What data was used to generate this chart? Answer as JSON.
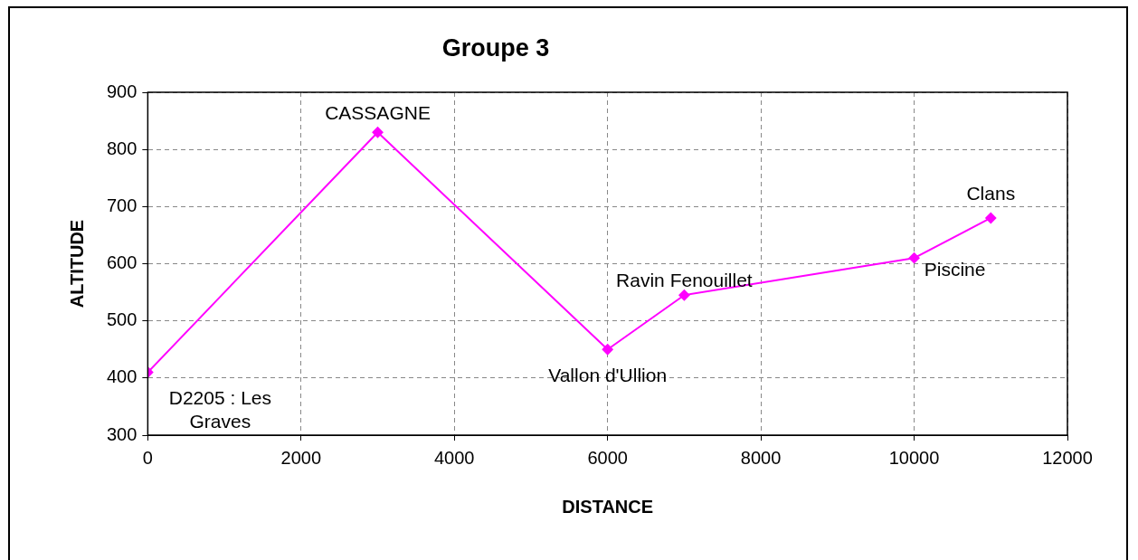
{
  "chart_data": {
    "type": "line",
    "title": "Groupe 3",
    "xlabel": "DISTANCE",
    "ylabel": "ALTITUDE",
    "x": [
      0,
      3000,
      6000,
      7000,
      10000,
      11000
    ],
    "series": [
      {
        "color": "#ff00ff",
        "values": [
          410,
          830,
          450,
          545,
          610,
          680
        ]
      }
    ],
    "xlim": [
      0,
      12000
    ],
    "xticks": [
      0,
      2000,
      4000,
      6000,
      8000,
      10000,
      12000
    ],
    "ylim": [
      300,
      900
    ],
    "yticks": [
      300,
      400,
      500,
      600,
      700,
      800,
      900
    ],
    "grid": true,
    "legend": false,
    "marker": "diamond",
    "line_style": "solid",
    "annotations": [
      {
        "text": "D2205 : Les Graves",
        "x": 0,
        "y": 410
      },
      {
        "text": "CASSAGNE",
        "x": 3000,
        "y": 830
      },
      {
        "text": "Vallon d'Ullion",
        "x": 6000,
        "y": 450
      },
      {
        "text": "Ravin Fenouillet",
        "x": 7000,
        "y": 545
      },
      {
        "text": "Piscine",
        "x": 10000,
        "y": 610
      },
      {
        "text": "Clans",
        "x": 11000,
        "y": 680
      }
    ]
  }
}
